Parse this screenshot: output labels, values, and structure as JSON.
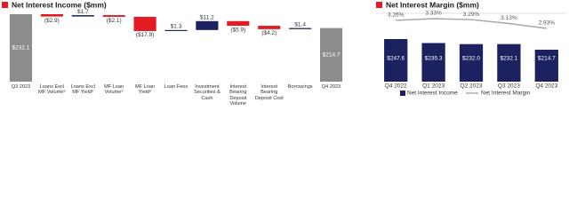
{
  "chart_data": [
    {
      "type": "waterfall",
      "title": "Net Interest Income ($mm)",
      "categories": [
        "Q3 2023",
        "Loans Excl MF Volume⁶",
        "Loans Excl MF Yield⁶",
        "MF Loan Volume⁶",
        "MF Loan Yield⁶",
        "Loan Fees",
        "Investment Securities & Cash",
        "Interest Bearing Deposit Volume",
        "Interest Bearing Deposit Cost",
        "Borrowings",
        "Q4 2023"
      ],
      "values": [
        232.1,
        -2.9,
        1.7,
        -2.1,
        -17.9,
        1.3,
        11.2,
        -5.9,
        -4.2,
        1.4,
        214.7
      ],
      "value_labels": [
        "$232.1",
        "($2.9)",
        "$1.7",
        "($2.1)",
        "($17.9)",
        "$1.3",
        "$11.2",
        "($5.9)",
        "($4.2)",
        "$1.4",
        "$214.7"
      ],
      "colors": [
        "#8c8c8c",
        "#e31b23",
        "#1c2260",
        "#e31b23",
        "#e31b23",
        "#1c2260",
        "#1c2260",
        "#e31b23",
        "#e31b23",
        "#1c2260",
        "#8c8c8c"
      ]
    },
    {
      "type": "bar_line",
      "title": "Net Interest Margin ($mm)",
      "categories": [
        "Q4 2022",
        "Q1 2023",
        "Q2 2023",
        "Q3 2023",
        "Q4 2023"
      ],
      "series": [
        {
          "name": "Net Interest Income",
          "type": "bar",
          "color": "#1c2260",
          "values": [
            247.6,
            235.3,
            232.0,
            232.1,
            214.7
          ],
          "value_labels": [
            "$247.6",
            "$235.3",
            "$232.0",
            "$232.1",
            "$214.7"
          ]
        },
        {
          "name": "Net Interest Margin",
          "type": "line",
          "color": "#a6a6a6",
          "values": [
            3.26,
            3.33,
            3.29,
            3.13,
            2.93
          ],
          "value_labels": [
            "3.26%",
            "3.33%",
            "3.29%",
            "3.13%",
            "2.93%"
          ]
        }
      ],
      "legend": "bottom"
    }
  ]
}
